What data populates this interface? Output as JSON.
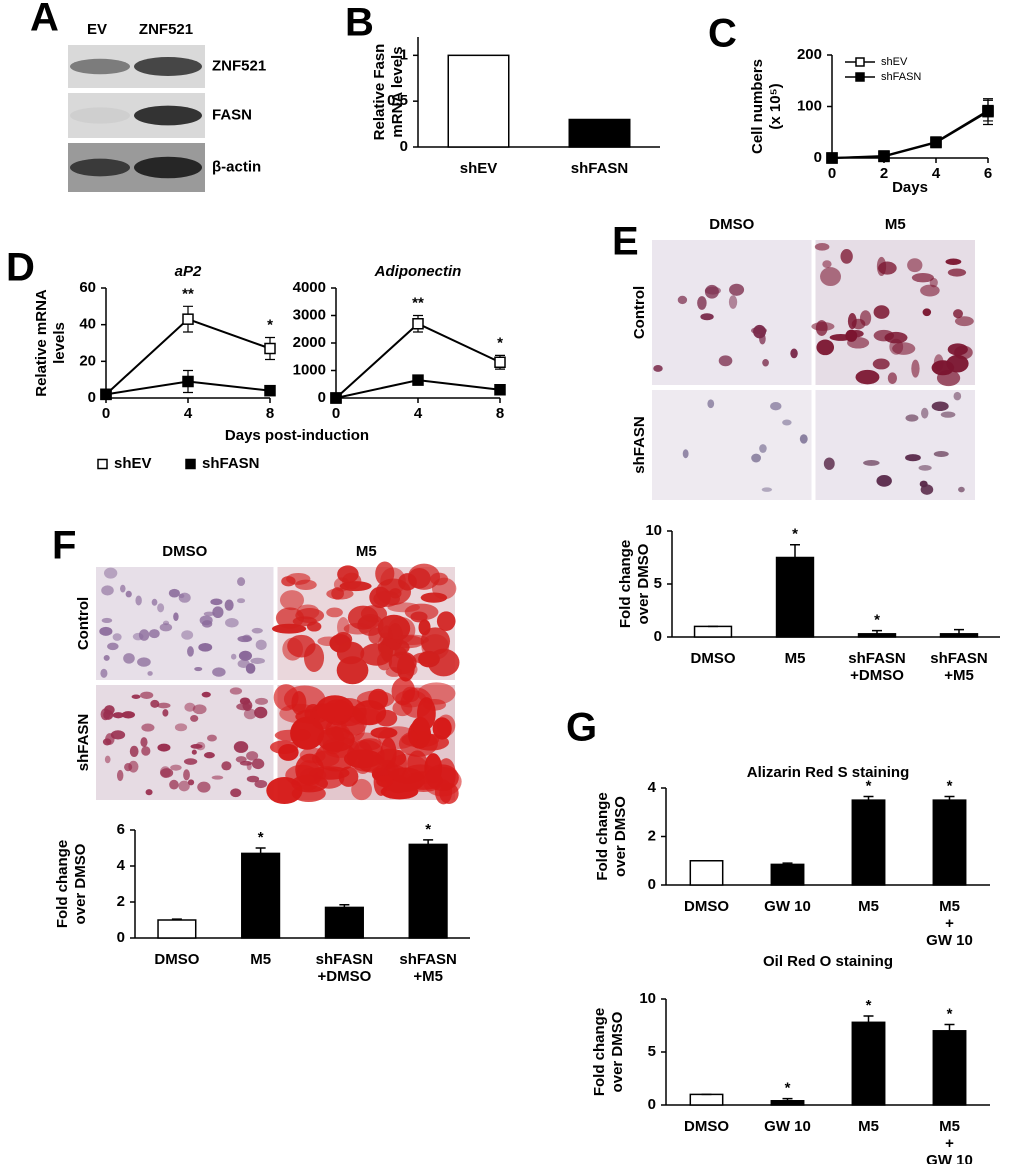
{
  "panel_labels": [
    "A",
    "B",
    "C",
    "D",
    "E",
    "F",
    "G"
  ],
  "blot": {
    "lanes": [
      "EV",
      "ZNF521"
    ],
    "rows": [
      "ZNF521",
      "FASN",
      "β-actin"
    ]
  },
  "micrographs": [
    {
      "columns": [
        "DMSO",
        "M5"
      ],
      "rows": [
        "Control",
        "shFASN"
      ]
    },
    {
      "columns": [
        "DMSO",
        "M5"
      ],
      "rows": [
        "Control",
        "shFASN"
      ]
    }
  ],
  "chart_data": [
    {
      "type": "bar",
      "y_label": [
        "Relative Fasn",
        "mRNA levels"
      ],
      "categories": [
        "shEV",
        "shFASN"
      ],
      "values": [
        1,
        0.3
      ],
      "colors": [
        "#ffffff",
        "#000000"
      ],
      "ylim": [
        0,
        1.2
      ],
      "yticks": [
        0,
        0.5,
        1
      ]
    },
    {
      "type": "line",
      "y_label": [
        "Cell numbers",
        "(x 10⁵)"
      ],
      "x_label": "Days",
      "x": [
        0,
        2,
        4,
        6
      ],
      "xlim": [
        0,
        6
      ],
      "xticks": [
        0,
        2,
        4,
        6
      ],
      "ylim": [
        0,
        200
      ],
      "yticks": [
        0,
        100,
        200
      ],
      "series": [
        {
          "name": "shEV",
          "color": "#000000",
          "marker": "open-square",
          "values": [
            0,
            3,
            30,
            90
          ],
          "errors": [
            1,
            2,
            5,
            25
          ]
        },
        {
          "name": "shFASN",
          "color": "#000000",
          "marker": "filled-square",
          "values": [
            0,
            4,
            31,
            92
          ],
          "errors": [
            1,
            2,
            5,
            20
          ]
        }
      ]
    },
    {
      "type": "line",
      "title": "aP2",
      "y_label": [
        "Relative mRNA",
        "levels"
      ],
      "x_label": "Days post-induction",
      "x": [
        0,
        4,
        8
      ],
      "xlim": [
        0,
        8
      ],
      "xticks": [
        0,
        4,
        8
      ],
      "ylim": [
        0,
        60
      ],
      "yticks": [
        0,
        20,
        40,
        60
      ],
      "series": [
        {
          "name": "shEV",
          "color": "#000000",
          "marker": "open-square",
          "values": [
            2,
            43,
            27
          ],
          "errors": [
            1,
            7,
            6
          ],
          "significance": [
            null,
            "**",
            "*"
          ]
        },
        {
          "name": "shFASN",
          "color": "#000000",
          "marker": "filled-square",
          "values": [
            2,
            9,
            4
          ],
          "errors": [
            2,
            6,
            1
          ]
        }
      ]
    },
    {
      "type": "line",
      "title": "Adiponectin",
      "x": [
        0,
        4,
        8
      ],
      "xlim": [
        0,
        8
      ],
      "xticks": [
        0,
        4,
        8
      ],
      "ylim": [
        0,
        4000
      ],
      "yticks": [
        0,
        1000,
        2000,
        3000,
        4000
      ],
      "series": [
        {
          "name": "shEV",
          "color": "#000000",
          "marker": "open-square",
          "values": [
            0,
            2700,
            1300
          ],
          "errors": [
            0,
            300,
            250
          ],
          "significance": [
            null,
            "**",
            "*"
          ]
        },
        {
          "name": "shFASN",
          "color": "#000000",
          "marker": "filled-square",
          "values": [
            0,
            650,
            300
          ],
          "errors": [
            0,
            80,
            50
          ]
        }
      ]
    },
    {
      "type": "bar",
      "y_label": [
        "Fold change",
        "over DMSO"
      ],
      "categories": [
        "DMSO",
        "M5",
        [
          "shFASN",
          "+DMSO"
        ],
        [
          "shFASN",
          "+M5"
        ]
      ],
      "values": [
        1,
        7.5,
        0.3,
        0.3
      ],
      "errors": [
        0,
        1.2,
        0.3,
        0.4
      ],
      "significance": [
        null,
        "*",
        "*",
        null
      ],
      "colors": [
        "#ffffff",
        "#000000",
        "#000000",
        "#000000"
      ],
      "ylim": [
        0,
        10
      ],
      "yticks": [
        0,
        5,
        10
      ]
    },
    {
      "type": "bar",
      "y_label": [
        "Fold change",
        "over DMSO"
      ],
      "categories": [
        "DMSO",
        "M5",
        [
          "shFASN",
          "+DMSO"
        ],
        [
          "shFASN",
          "+M5"
        ]
      ],
      "values": [
        1,
        4.7,
        1.7,
        5.2
      ],
      "errors": [
        0.05,
        0.3,
        0.15,
        0.25
      ],
      "significance": [
        null,
        "*",
        null,
        "*"
      ],
      "colors": [
        "#ffffff",
        "#000000",
        "#000000",
        "#000000"
      ],
      "ylim": [
        0,
        6
      ],
      "yticks": [
        0,
        2,
        4,
        6
      ]
    },
    {
      "type": "bar",
      "title": "Alizarin Red S staining",
      "y_label": [
        "Fold change",
        "over DMSO"
      ],
      "categories": [
        "DMSO",
        "GW 10",
        "M5",
        [
          "M5",
          "+",
          "GW 10"
        ]
      ],
      "values": [
        1,
        0.85,
        3.5,
        3.5
      ],
      "errors": [
        0,
        0.05,
        0.15,
        0.15
      ],
      "significance": [
        null,
        null,
        "*",
        "*"
      ],
      "colors": [
        "#ffffff",
        "#000000",
        "#000000",
        "#000000"
      ],
      "ylim": [
        0,
        4
      ],
      "yticks": [
        0,
        2,
        4
      ]
    },
    {
      "type": "bar",
      "title": "Oil Red O staining",
      "y_label": [
        "Fold change",
        "over DMSO"
      ],
      "categories": [
        "DMSO",
        "GW 10",
        "M5",
        [
          "M5",
          "+",
          "GW 10"
        ]
      ],
      "values": [
        1,
        0.4,
        7.8,
        7
      ],
      "errors": [
        0,
        0.2,
        0.6,
        0.6
      ],
      "significance": [
        null,
        "*",
        "*",
        "*"
      ],
      "colors": [
        "#ffffff",
        "#000000",
        "#000000",
        "#000000"
      ],
      "ylim": [
        0,
        10
      ],
      "yticks": [
        0,
        5,
        10
      ]
    }
  ]
}
